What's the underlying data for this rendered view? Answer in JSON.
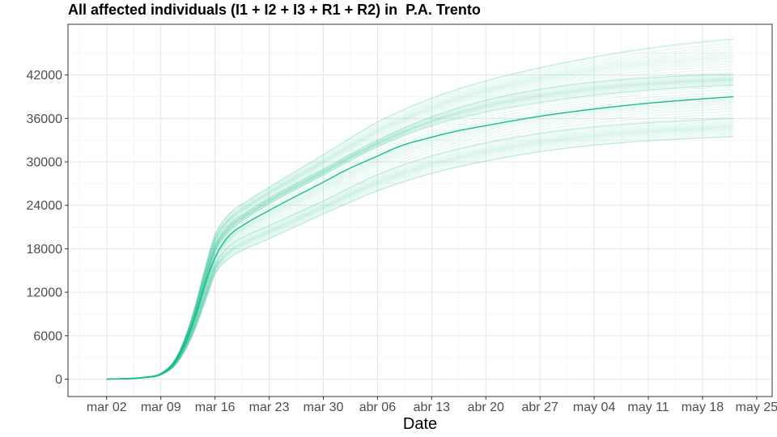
{
  "chart_data": {
    "type": "line",
    "title": "All affected individuals (I1 + I2 + I3 + R1 + R2) in  P.A. Trento",
    "xlabel": "Date",
    "ylabel": "",
    "x_tick_labels": [
      "mar 02",
      "mar 09",
      "mar 16",
      "mar 23",
      "mar 30",
      "abr 06",
      "abr 13",
      "abr 20",
      "abr 27",
      "may 04",
      "may 11",
      "may 18",
      "may 25"
    ],
    "y_ticks": [
      0,
      6000,
      12000,
      18000,
      24000,
      30000,
      36000,
      42000
    ],
    "ylim": [
      -2400,
      49000
    ],
    "xlim": [
      "2020-02-26",
      "2020-05-27"
    ],
    "grid": true,
    "legend": "none",
    "line_color": "#1ABC8C",
    "series": [
      {
        "role": "median",
        "x": [
          "2020-03-02",
          "2020-03-05",
          "2020-03-07",
          "2020-03-09",
          "2020-03-10",
          "2020-03-11",
          "2020-03-12",
          "2020-03-13",
          "2020-03-14",
          "2020-03-15",
          "2020-03-16",
          "2020-03-17",
          "2020-03-18",
          "2020-03-20",
          "2020-03-23",
          "2020-03-26",
          "2020-03-30",
          "2020-04-02",
          "2020-04-06",
          "2020-04-09",
          "2020-04-13",
          "2020-04-16",
          "2020-04-20",
          "2020-04-27",
          "2020-05-04",
          "2020-05-11",
          "2020-05-18",
          "2020-05-22"
        ],
        "values": [
          0,
          50,
          250,
          700,
          1400,
          2600,
          4500,
          7200,
          10500,
          14000,
          16800,
          18700,
          20000,
          21500,
          23300,
          25000,
          27200,
          28900,
          30800,
          32200,
          33400,
          34200,
          35000,
          36300,
          37300,
          38100,
          38700,
          39000
        ]
      },
      {
        "role": "ensemble-high",
        "x": [
          "2020-03-02",
          "2020-03-07",
          "2020-03-09",
          "2020-03-11",
          "2020-03-13",
          "2020-03-15",
          "2020-03-16",
          "2020-03-18",
          "2020-03-20",
          "2020-03-23",
          "2020-03-30",
          "2020-04-06",
          "2020-04-13",
          "2020-04-20",
          "2020-04-27",
          "2020-05-04",
          "2020-05-11",
          "2020-05-18",
          "2020-05-22"
        ],
        "values": [
          0,
          300,
          800,
          3000,
          8500,
          16500,
          20000,
          23000,
          24500,
          26500,
          31000,
          35500,
          38800,
          41200,
          43000,
          44500,
          45700,
          46600,
          47000
        ]
      },
      {
        "role": "ensemble-upper",
        "x": [
          "2020-03-02",
          "2020-03-07",
          "2020-03-09",
          "2020-03-11",
          "2020-03-13",
          "2020-03-15",
          "2020-03-16",
          "2020-03-18",
          "2020-03-20",
          "2020-03-23",
          "2020-03-30",
          "2020-04-06",
          "2020-04-13",
          "2020-04-20",
          "2020-04-27",
          "2020-05-04",
          "2020-05-11",
          "2020-05-18",
          "2020-05-22"
        ],
        "values": [
          0,
          280,
          760,
          2800,
          7800,
          15200,
          18500,
          21500,
          23000,
          25000,
          29000,
          33000,
          36200,
          38500,
          40000,
          41000,
          41600,
          42000,
          42100
        ]
      },
      {
        "role": "ensemble-mid",
        "x": [
          "2020-03-02",
          "2020-03-07",
          "2020-03-09",
          "2020-03-11",
          "2020-03-13",
          "2020-03-15",
          "2020-03-16",
          "2020-03-18",
          "2020-03-20",
          "2020-03-23",
          "2020-03-30",
          "2020-04-06",
          "2020-04-13",
          "2020-04-20",
          "2020-04-27",
          "2020-05-04",
          "2020-05-11",
          "2020-05-18",
          "2020-05-22"
        ],
        "values": [
          0,
          260,
          720,
          2700,
          7400,
          14300,
          17600,
          20600,
          22200,
          24200,
          28200,
          32100,
          35000,
          36900,
          38200,
          39200,
          39900,
          40400,
          40600
        ]
      },
      {
        "role": "ensemble-lower",
        "x": [
          "2020-03-02",
          "2020-03-07",
          "2020-03-09",
          "2020-03-11",
          "2020-03-13",
          "2020-03-15",
          "2020-03-16",
          "2020-03-18",
          "2020-03-20",
          "2020-03-23",
          "2020-03-30",
          "2020-04-06",
          "2020-04-13",
          "2020-04-20",
          "2020-04-27",
          "2020-05-04",
          "2020-05-11",
          "2020-05-18",
          "2020-05-22"
        ],
        "values": [
          0,
          230,
          650,
          2400,
          6600,
          12800,
          15800,
          18500,
          19800,
          21200,
          24600,
          28200,
          30800,
          32600,
          33900,
          34800,
          35400,
          35800,
          36000
        ]
      },
      {
        "role": "ensemble-low",
        "x": [
          "2020-03-02",
          "2020-03-07",
          "2020-03-09",
          "2020-03-11",
          "2020-03-13",
          "2020-03-15",
          "2020-03-16",
          "2020-03-18",
          "2020-03-20",
          "2020-03-23",
          "2020-03-30",
          "2020-04-06",
          "2020-04-13",
          "2020-04-20",
          "2020-04-27",
          "2020-05-04",
          "2020-05-11",
          "2020-05-18",
          "2020-05-22"
        ],
        "values": [
          0,
          200,
          580,
          2100,
          5800,
          11500,
          14500,
          16800,
          18000,
          19400,
          22800,
          26000,
          28400,
          30100,
          31400,
          32300,
          32900,
          33300,
          33500
        ]
      }
    ]
  }
}
